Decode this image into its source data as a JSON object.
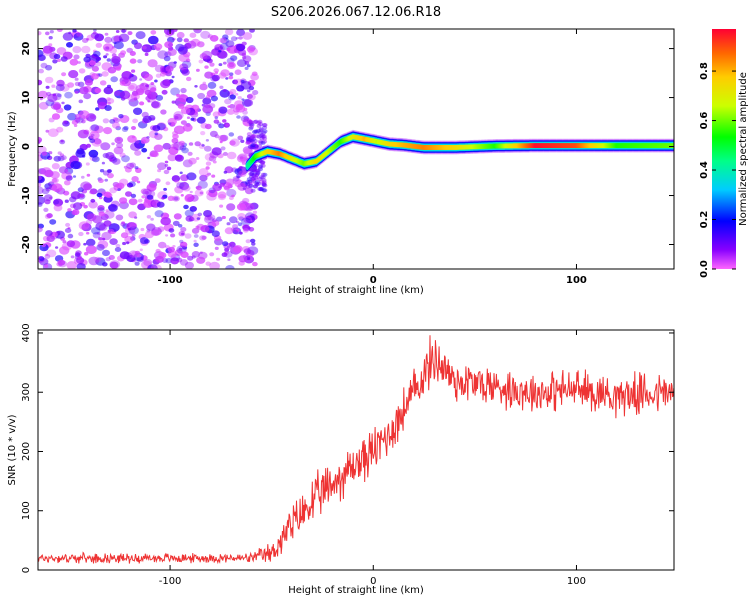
{
  "chart_data": [
    {
      "type": "heatmap",
      "title": "S206.2026.067.12.06.R18",
      "xlabel": "Height of straight line (km)",
      "ylabel": "Frequency (Hz)",
      "xlim": [
        -165,
        148
      ],
      "ylim": [
        -25,
        24
      ],
      "xticks": [
        -100,
        0,
        100
      ],
      "yticks": [
        -20,
        -10,
        0,
        10,
        20
      ],
      "colorbar": {
        "label": "Normalized spectral amplitude",
        "range": [
          0,
          0.97
        ],
        "ticks": [
          0.0,
          0.2,
          0.4,
          0.6,
          0.8
        ],
        "tick_labels": [
          "0.0",
          "0.2",
          "0.4",
          "0.6",
          "0.8"
        ]
      },
      "noise_region_x": [
        -165,
        -60
      ],
      "ridge": {
        "x": [
          -62,
          -58,
          -52,
          -46,
          -40,
          -34,
          -28,
          -22,
          -16,
          -10,
          -4,
          2,
          8,
          15,
          25,
          40,
          60,
          80,
          100,
          120,
          148
        ],
        "y": [
          -4,
          -2,
          -1,
          -1.5,
          -2.5,
          -3.5,
          -3,
          -1,
          1,
          2,
          1.5,
          1,
          0.5,
          0.3,
          -0.2,
          -0.2,
          0.1,
          0.2,
          0.2,
          0.2,
          0.2
        ],
        "amplitude": [
          0.4,
          0.55,
          0.75,
          0.85,
          0.7,
          0.6,
          0.75,
          0.65,
          0.55,
          0.7,
          0.8,
          0.65,
          0.75,
          0.8,
          0.85,
          0.75,
          0.55,
          0.96,
          0.9,
          0.55,
          0.6
        ]
      }
    },
    {
      "type": "line",
      "xlabel": "Height of straight line (km)",
      "ylabel": "SNR (10 * v/v)",
      "xlim": [
        -165,
        148
      ],
      "ylim": [
        0,
        405
      ],
      "xticks": [
        -100,
        0,
        100
      ],
      "yticks": [
        0,
        100,
        200,
        300,
        400
      ],
      "series": [
        {
          "name": "SNR",
          "color": "#ee3333",
          "trend_x": [
            -165,
            -60,
            -50,
            -40,
            -30,
            -20,
            -10,
            0,
            10,
            20,
            30,
            40,
            60,
            80,
            100,
            120,
            148
          ],
          "trend_y": [
            20,
            20,
            28,
            75,
            115,
            145,
            175,
            200,
            240,
            300,
            360,
            320,
            310,
            300,
            305,
            295,
            300
          ],
          "noise_amplitude": [
            8,
            8,
            20,
            35,
            40,
            40,
            40,
            40,
            40,
            40,
            45,
            40,
            35,
            35,
            35,
            35,
            35
          ]
        }
      ]
    }
  ]
}
